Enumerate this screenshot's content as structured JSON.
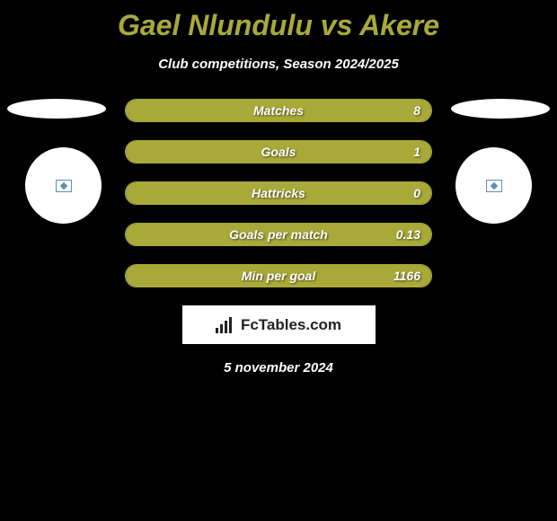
{
  "header": {
    "title": "Gael Nlundulu vs Akere",
    "subtitle": "Club competitions, Season 2024/2025"
  },
  "colors": {
    "accent": "#a9a93a",
    "background": "#000000",
    "text": "#ffffff",
    "logo_bg": "#ffffff",
    "logo_text": "#222222",
    "icon_border": "#5a8fb5"
  },
  "stats": [
    {
      "label": "Matches",
      "value_right": "8",
      "fill_pct": 100
    },
    {
      "label": "Goals",
      "value_right": "1",
      "fill_pct": 100
    },
    {
      "label": "Hattricks",
      "value_right": "0",
      "fill_pct": 100
    },
    {
      "label": "Goals per match",
      "value_right": "0.13",
      "fill_pct": 100
    },
    {
      "label": "Min per goal",
      "value_right": "1166",
      "fill_pct": 100
    }
  ],
  "logo": {
    "text": "FcTables.com"
  },
  "footer": {
    "date": "5 november 2024"
  }
}
